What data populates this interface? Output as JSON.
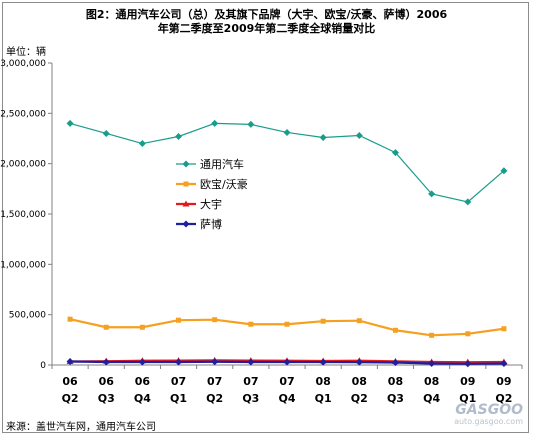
{
  "title_line1": "图2：通用汽车公司（总）及其旗下品牌（大宇、欧宝/沃豪、萨博）2006",
  "title_line2": "年第二季度至2009年第二季度全球销量对比",
  "unit_label": "单位：辆",
  "source": "来源：盖世汽车网，通用汽车公司",
  "watermark": {
    "brand": "GASGOO",
    "sub": "盖世汽车网",
    "url": "auto.gasgoo.com"
  },
  "chart_data": {
    "type": "line",
    "title": "图2：通用汽车公司（总）及其旗下品牌（大宇、欧宝/沃豪、萨博）2006年第二季度至2009年第二季度全球销量对比",
    "ylabel": "单位：辆",
    "xlabel": "",
    "ylim": [
      0,
      3000000
    ],
    "yticks": [
      "0",
      "500,000",
      "1,000,000",
      "1,500,000",
      "2,000,000",
      "2,500,000",
      "3,000,000"
    ],
    "categories": [
      [
        "06",
        "Q2"
      ],
      [
        "06",
        "Q3"
      ],
      [
        "06",
        "Q4"
      ],
      [
        "07",
        "Q1"
      ],
      [
        "07",
        "Q2"
      ],
      [
        "07",
        "Q3"
      ],
      [
        "07",
        "Q4"
      ],
      [
        "08",
        "Q1"
      ],
      [
        "08",
        "Q2"
      ],
      [
        "08",
        "Q3"
      ],
      [
        "08",
        "Q4"
      ],
      [
        "09",
        "Q1"
      ],
      [
        "09",
        "Q2"
      ]
    ],
    "grid": false,
    "legend_position": "center-left",
    "series": [
      {
        "name": "通用汽车",
        "color": "#1a9c8c",
        "marker": "diamond",
        "values": [
          2400000,
          2300000,
          2200000,
          2270000,
          2400000,
          2390000,
          2310000,
          2260000,
          2280000,
          2110000,
          1700000,
          1620000,
          1930000
        ]
      },
      {
        "name": "欧宝/沃豪",
        "color": "#f5a020",
        "marker": "square",
        "values": [
          455000,
          375000,
          375000,
          445000,
          450000,
          405000,
          405000,
          435000,
          440000,
          345000,
          295000,
          310000,
          360000
        ]
      },
      {
        "name": "大宇",
        "color": "#e31a1c",
        "marker": "triangle",
        "values": [
          35000,
          38000,
          42000,
          44000,
          46000,
          44000,
          42000,
          40000,
          42000,
          36000,
          30000,
          28000,
          30000
        ]
      },
      {
        "name": "萨博",
        "color": "#1f1fa0",
        "marker": "diamond",
        "values": [
          35000,
          30000,
          30000,
          30000,
          32000,
          30000,
          30000,
          29000,
          28000,
          25000,
          15000,
          12000,
          15000
        ]
      }
    ]
  }
}
